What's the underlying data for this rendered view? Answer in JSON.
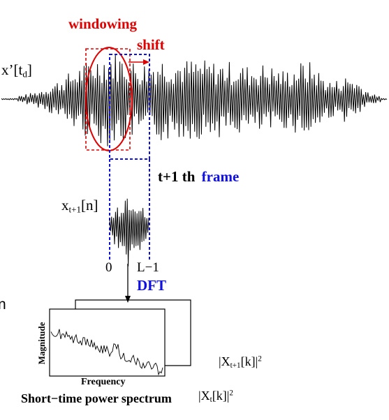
{
  "labels": {
    "windowing": "windowing",
    "shift": "shift",
    "signal_main": "x’[t",
    "signal_main_sub": "d",
    "signal_main_close": "]",
    "frame_index": "t+1 th",
    "frame_word": "frame",
    "frame_signal": "x",
    "frame_signal_sub": "t+1",
    "frame_signal_close": "[n]",
    "tick_zero": "0",
    "tick_end": "L−1",
    "dft": "DFT",
    "magnitude_axis": "Magnitude",
    "frequency_axis": "Frequency",
    "spectrum_next": "|X",
    "spectrum_next_sub": "t+1",
    "spectrum_next_close": "[k]|",
    "spectrum_next_sup": "2",
    "spectrum_title": "Short−time power spectrum",
    "spectrum_cur": "|X",
    "spectrum_cur_sub": "t",
    "spectrum_cur_close": "[k]|",
    "spectrum_cur_sup": "2",
    "edge_fragment": "n"
  },
  "colors": {
    "window": "#e00000",
    "frame": "#1010e0",
    "signal": "#000000"
  }
}
